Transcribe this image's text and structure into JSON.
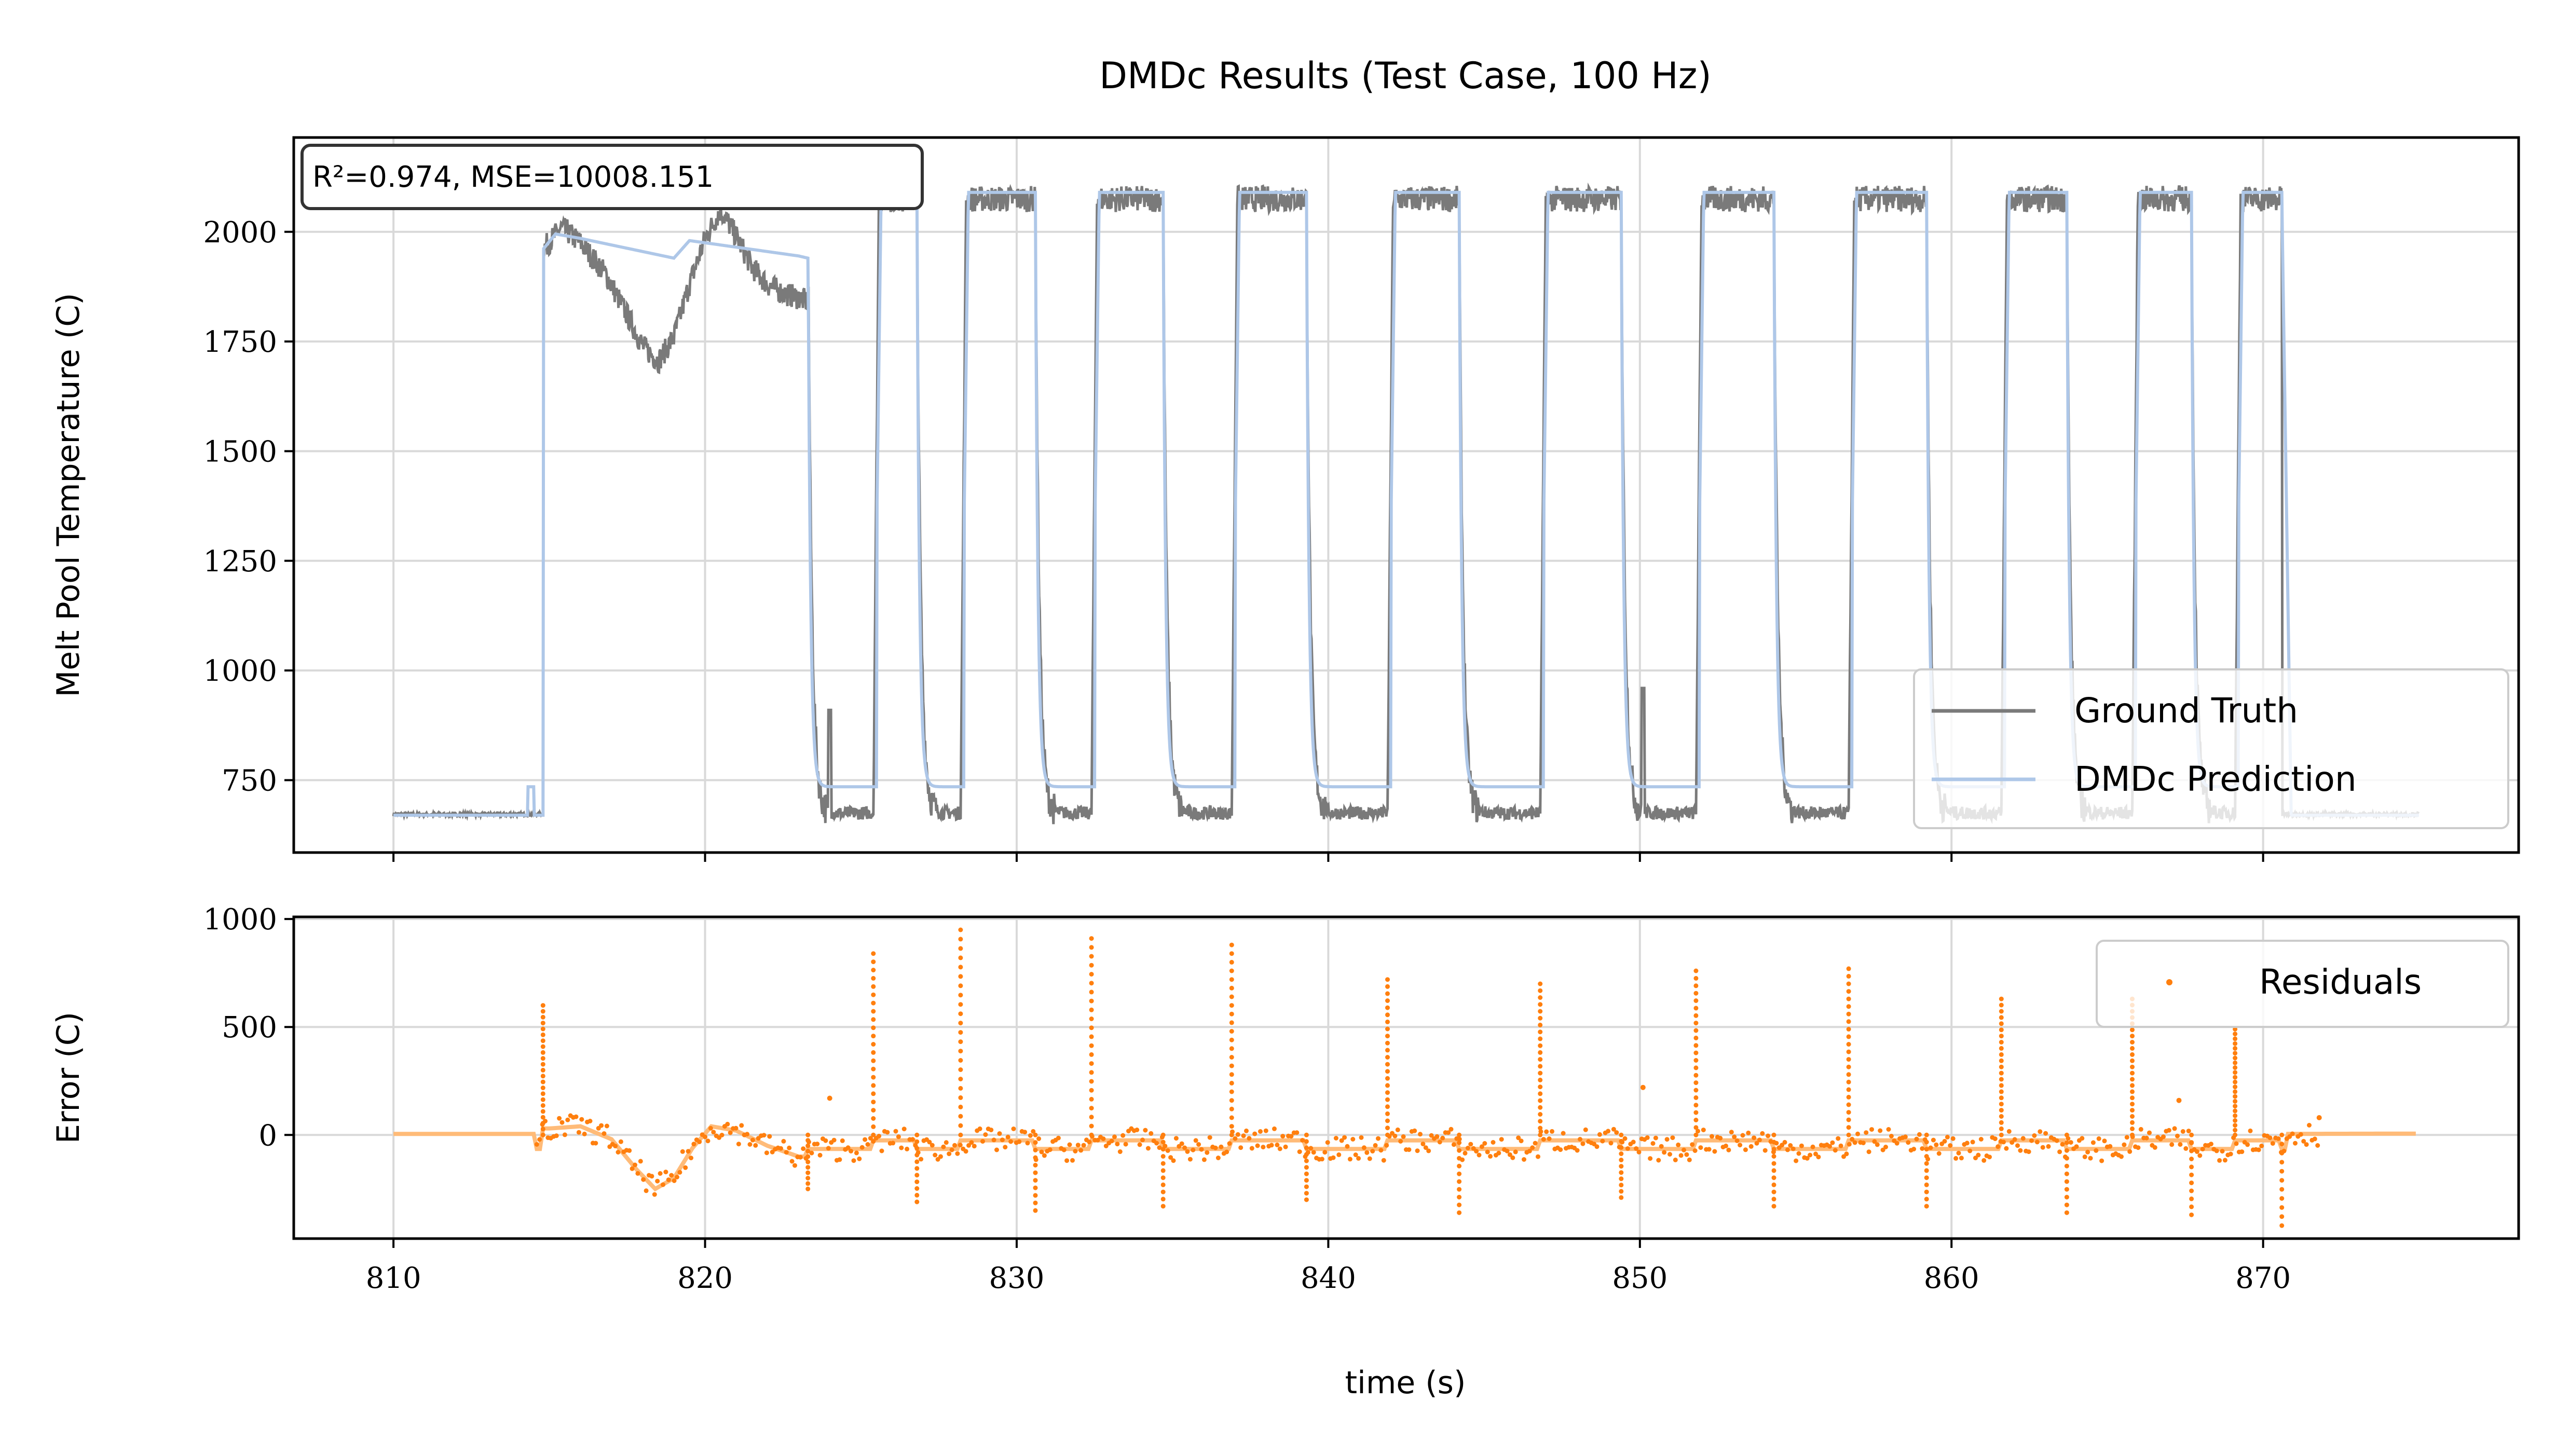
{
  "figure_title": "DMDc Results (Test Case, 100 Hz)",
  "colors": {
    "ground_truth": "#7a7a7a",
    "prediction": "#aec7e8",
    "residual_dots": "#ff7f0e",
    "residual_line": "#ffbb78",
    "grid": "#d9d9d9"
  },
  "chart_data": [
    {
      "type": "line",
      "title": "DMDc Results (Test Case, 100 Hz)",
      "xlabel": "",
      "ylabel": "Melt Pool Temperature (C)",
      "xlim": [
        806.8,
        878.2
      ],
      "ylim": [
        585,
        2215
      ],
      "xticks": [
        810,
        820,
        830,
        840,
        850,
        860,
        870
      ],
      "yticks": [
        750,
        1000,
        1250,
        1500,
        1750,
        2000
      ],
      "ytick_labels": [
        "750",
        "1000",
        "1250",
        "1500",
        "1750",
        "2000"
      ],
      "grid": true,
      "annotation": "R²=0.974, MSE=10008.151",
      "legend": {
        "placement": "lower-right",
        "entries": [
          "Ground Truth",
          "DMDc Prediction"
        ]
      },
      "high_level": 2075,
      "low_level": 735,
      "gt_low_level": 675,
      "pulses": [
        [
          814.8,
          823.3
        ],
        [
          825.4,
          826.8
        ],
        [
          828.2,
          830.6
        ],
        [
          832.4,
          834.7
        ],
        [
          836.9,
          839.3
        ],
        [
          841.9,
          844.2
        ],
        [
          846.8,
          849.4
        ],
        [
          851.8,
          854.3
        ],
        [
          856.7,
          859.2
        ],
        [
          861.6,
          863.7
        ],
        [
          865.8,
          867.7
        ],
        [
          869.1,
          870.6
        ]
      ],
      "series": [
        {
          "name": "Ground Truth",
          "first_pulse_profile": {
            "x": [
              814.8,
              815.4,
              816.0,
              816.8,
              817.5,
              818.0,
              818.5,
              819.0,
              819.5,
              820.0,
              820.5,
              821.0,
              821.5,
              822.0,
              822.5,
              823.0,
              823.3
            ],
            "y": [
              1960,
              2010,
              1975,
              1905,
              1810,
              1740,
              1705,
              1760,
              1880,
              1985,
              2050,
              1990,
              1920,
              1880,
              1860,
              1850,
              1840
            ]
          },
          "spikes": [
            [
              824.0,
              910
            ],
            [
              850.1,
              960
            ]
          ]
        },
        {
          "name": "DMDc Prediction",
          "first_pulse_profile": {
            "x": [
              814.8,
              815.2,
              816.0,
              817.0,
              818.0,
              819.0,
              819.5,
              820.0,
              821.0,
              822.0,
              823.0,
              823.3
            ],
            "y": [
              1960,
              1995,
              1985,
              1970,
              1955,
              1940,
              1980,
              1975,
              1965,
              1955,
              1945,
              1940
            ]
          }
        }
      ]
    },
    {
      "type": "scatter",
      "xlabel": "time (s)",
      "ylabel": "Error (C)",
      "xlim": [
        806.8,
        878.2
      ],
      "ylim": [
        -480,
        1010
      ],
      "xticks": [
        810,
        820,
        830,
        840,
        850,
        860,
        870
      ],
      "xtick_labels": [
        "810",
        "820",
        "830",
        "840",
        "850",
        "860",
        "870"
      ],
      "yticks": [
        0,
        500,
        1000
      ],
      "ytick_labels": [
        "0",
        "500",
        "1000"
      ],
      "grid": true,
      "legend": {
        "placement": "upper-right",
        "entries": [
          "Residuals"
        ]
      },
      "series": [
        {
          "name": "Residuals",
          "spikes_up": [
            [
              814.8,
              600
            ],
            [
              825.4,
              840
            ],
            [
              828.2,
              950
            ],
            [
              832.4,
              910
            ],
            [
              836.9,
              880
            ],
            [
              841.9,
              720
            ],
            [
              846.8,
              700
            ],
            [
              851.8,
              760
            ],
            [
              856.7,
              770
            ],
            [
              861.6,
              630
            ],
            [
              865.8,
              630
            ],
            [
              869.1,
              490
            ]
          ],
          "spikes_down": [
            [
              823.3,
              -250
            ],
            [
              826.8,
              -310
            ],
            [
              830.6,
              -350
            ],
            [
              834.7,
              -330
            ],
            [
              839.3,
              -300
            ],
            [
              844.2,
              -360
            ],
            [
              849.4,
              -290
            ],
            [
              854.3,
              -330
            ],
            [
              859.2,
              -330
            ],
            [
              863.7,
              -360
            ],
            [
              867.7,
              -370
            ],
            [
              870.6,
              -420
            ]
          ],
          "first_pulse_dip": {
            "x": [
              815.0,
              816.0,
              817.0,
              817.8,
              818.4,
              819.0,
              819.6,
              820.2,
              821.0,
              822.0,
              823.0
            ],
            "y": [
              30,
              40,
              -20,
              -160,
              -250,
              -200,
              -60,
              40,
              20,
              -50,
              -100
            ]
          }
        }
      ]
    }
  ]
}
